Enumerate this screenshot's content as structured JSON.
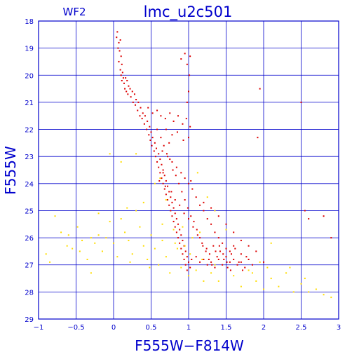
{
  "colors": {
    "axis": "#0000cc",
    "grid": "#0000cc",
    "text": "#0000cc",
    "point_primary": "#dd0000",
    "point_secondary": "#ffdd00"
  },
  "chart_data": {
    "type": "scatter",
    "panel_label": "WF2",
    "title": "lmc_u2c501",
    "xlabel": "F555W−F814W",
    "ylabel": "F555W",
    "xlim": [
      -1,
      3
    ],
    "ylim": [
      18,
      29
    ],
    "y_inverted": true,
    "grid": true,
    "legend": "none",
    "x_ticks": [
      -1,
      -0.5,
      0,
      0.5,
      1,
      1.5,
      2,
      2.5,
      3
    ],
    "x_tick_labels": [
      "−1",
      "−0.5",
      "0",
      "0.5",
      "1",
      "1.5",
      "2",
      "2.5",
      "3"
    ],
    "y_ticks": [
      18,
      19,
      20,
      21,
      22,
      23,
      24,
      25,
      26,
      27,
      28,
      29
    ],
    "y_tick_labels": [
      "18",
      "19",
      "20",
      "21",
      "22",
      "23",
      "24",
      "25",
      "26",
      "27",
      "28",
      "29"
    ],
    "series": [
      {
        "color": "#dd0000",
        "points": [
          [
            0.05,
            18.4
          ],
          [
            0.04,
            18.6
          ],
          [
            0.07,
            18.8
          ],
          [
            0.09,
            18.7
          ],
          [
            0.06,
            19.0
          ],
          [
            0.08,
            19.1
          ],
          [
            0.1,
            19.3
          ],
          [
            0.07,
            19.5
          ],
          [
            0.11,
            19.6
          ],
          [
            0.09,
            19.8
          ],
          [
            0.12,
            19.9
          ],
          [
            0.1,
            20.0
          ],
          [
            0.13,
            20.1
          ],
          [
            0.16,
            20.1
          ],
          [
            0.11,
            20.2
          ],
          [
            0.14,
            20.3
          ],
          [
            0.18,
            20.2
          ],
          [
            0.2,
            20.4
          ],
          [
            0.15,
            20.5
          ],
          [
            0.22,
            20.5
          ],
          [
            0.17,
            20.6
          ],
          [
            0.25,
            20.6
          ],
          [
            0.19,
            20.7
          ],
          [
            0.28,
            20.7
          ],
          [
            0.23,
            20.8
          ],
          [
            0.3,
            20.9
          ],
          [
            0.26,
            21.0
          ],
          [
            0.33,
            21.0
          ],
          [
            0.29,
            21.1
          ],
          [
            0.36,
            21.2
          ],
          [
            0.32,
            21.3
          ],
          [
            0.39,
            21.4
          ],
          [
            0.35,
            21.5
          ],
          [
            0.42,
            21.5
          ],
          [
            0.38,
            21.6
          ],
          [
            0.45,
            21.7
          ],
          [
            0.41,
            21.8
          ],
          [
            0.48,
            21.9
          ],
          [
            0.44,
            22.0
          ],
          [
            0.5,
            22.1
          ],
          [
            0.47,
            22.2
          ],
          [
            0.52,
            22.3
          ],
          [
            0.49,
            22.4
          ],
          [
            0.55,
            22.5
          ],
          [
            0.51,
            22.6
          ],
          [
            0.57,
            22.7
          ],
          [
            0.54,
            22.8
          ],
          [
            0.6,
            22.9
          ],
          [
            0.56,
            23.0
          ],
          [
            0.62,
            23.1
          ],
          [
            0.58,
            23.2
          ],
          [
            0.64,
            23.3
          ],
          [
            0.6,
            23.4
          ],
          [
            0.66,
            23.5
          ],
          [
            0.62,
            23.6
          ],
          [
            0.68,
            23.7
          ],
          [
            0.64,
            23.8
          ],
          [
            0.7,
            23.9
          ],
          [
            0.66,
            24.0
          ],
          [
            0.72,
            24.1
          ],
          [
            0.68,
            24.2
          ],
          [
            0.74,
            24.3
          ],
          [
            0.7,
            24.4
          ],
          [
            0.76,
            24.5
          ],
          [
            0.72,
            24.6
          ],
          [
            0.78,
            24.7
          ],
          [
            0.74,
            24.8
          ],
          [
            0.8,
            24.9
          ],
          [
            0.76,
            25.0
          ],
          [
            0.82,
            25.1
          ],
          [
            0.78,
            25.2
          ],
          [
            0.84,
            25.3
          ],
          [
            0.8,
            25.4
          ],
          [
            0.86,
            25.5
          ],
          [
            0.82,
            25.6
          ],
          [
            0.88,
            25.7
          ],
          [
            0.84,
            25.8
          ],
          [
            0.9,
            25.9
          ],
          [
            0.86,
            26.0
          ],
          [
            0.92,
            26.1
          ],
          [
            0.88,
            26.2
          ],
          [
            0.94,
            26.3
          ],
          [
            0.9,
            26.4
          ],
          [
            0.96,
            26.5
          ],
          [
            0.92,
            26.6
          ],
          [
            0.98,
            26.7
          ],
          [
            0.94,
            26.8
          ],
          [
            1.0,
            26.9
          ],
          [
            0.96,
            27.0
          ],
          [
            1.02,
            27.1
          ],
          [
            0.98,
            27.2
          ],
          [
            1.04,
            26.8
          ],
          [
            1.1,
            26.7
          ],
          [
            1.15,
            26.9
          ],
          [
            1.2,
            26.8
          ],
          [
            1.25,
            27.0
          ],
          [
            1.3,
            26.9
          ],
          [
            1.35,
            27.1
          ],
          [
            1.4,
            26.8
          ],
          [
            1.45,
            27.0
          ],
          [
            1.5,
            26.7
          ],
          [
            1.55,
            26.9
          ],
          [
            1.6,
            26.8
          ],
          [
            1.65,
            27.0
          ],
          [
            1.7,
            26.9
          ],
          [
            1.75,
            27.1
          ],
          [
            1.8,
            26.8
          ],
          [
            1.85,
            27.0
          ],
          [
            0.46,
            21.2
          ],
          [
            0.52,
            21.4
          ],
          [
            0.58,
            21.3
          ],
          [
            0.63,
            21.5
          ],
          [
            0.69,
            21.6
          ],
          [
            0.75,
            21.4
          ],
          [
            0.8,
            21.7
          ],
          [
            0.86,
            21.5
          ],
          [
            0.92,
            21.8
          ],
          [
            0.97,
            21.6
          ],
          [
            1.02,
            21.9
          ],
          [
            0.7,
            22.0
          ],
          [
            0.78,
            22.2
          ],
          [
            0.85,
            22.1
          ],
          [
            0.93,
            22.4
          ],
          [
            1.0,
            22.3
          ],
          [
            0.65,
            22.8
          ],
          [
            0.72,
            23.0
          ],
          [
            0.78,
            23.2
          ],
          [
            0.84,
            23.4
          ],
          [
            0.9,
            23.6
          ],
          [
            0.95,
            23.8
          ],
          [
            1.0,
            24.0
          ],
          [
            1.05,
            24.2
          ],
          [
            1.1,
            24.5
          ],
          [
            1.15,
            24.8
          ],
          [
            1.2,
            25.0
          ],
          [
            1.25,
            25.3
          ],
          [
            1.3,
            25.5
          ],
          [
            1.35,
            25.8
          ],
          [
            1.4,
            26.0
          ],
          [
            1.45,
            26.2
          ],
          [
            1.5,
            26.4
          ],
          [
            1.55,
            26.5
          ],
          [
            1.6,
            26.3
          ],
          [
            1.7,
            26.6
          ],
          [
            0.95,
            19.2
          ],
          [
            0.9,
            19.4
          ],
          [
            0.98,
            19.6
          ],
          [
            1.02,
            19.3
          ],
          [
            1.01,
            20.0
          ],
          [
            1.0,
            20.6
          ],
          [
            0.98,
            21.0
          ],
          [
            1.03,
            23.9
          ],
          [
            1.2,
            24.7
          ],
          [
            1.3,
            24.9
          ],
          [
            1.4,
            25.2
          ],
          [
            1.5,
            25.5
          ],
          [
            1.6,
            25.8
          ],
          [
            1.7,
            26.1
          ],
          [
            1.8,
            26.3
          ],
          [
            1.9,
            26.5
          ],
          [
            2.0,
            26.9
          ],
          [
            1.95,
            20.5
          ],
          [
            1.92,
            22.3
          ],
          [
            2.5,
            21.0
          ],
          [
            2.55,
            25.0
          ],
          [
            2.6,
            25.3
          ],
          [
            2.8,
            25.2
          ],
          [
            2.9,
            26.0
          ],
          [
            0.74,
            22.5
          ],
          [
            0.66,
            23.6
          ],
          [
            0.61,
            23.9
          ],
          [
            0.69,
            24.1
          ],
          [
            0.77,
            24.3
          ],
          [
            0.82,
            24.6
          ],
          [
            0.88,
            24.8
          ],
          [
            0.94,
            25.1
          ],
          [
            1.0,
            25.3
          ],
          [
            1.06,
            25.6
          ],
          [
            1.12,
            25.9
          ],
          [
            1.18,
            26.2
          ],
          [
            1.24,
            26.4
          ],
          [
            1.28,
            26.6
          ],
          [
            1.33,
            26.3
          ],
          [
            1.38,
            26.7
          ],
          [
            1.42,
            26.5
          ],
          [
            1.47,
            26.8
          ],
          [
            1.52,
            27.1
          ],
          [
            1.57,
            26.6
          ],
          [
            1.62,
            26.4
          ],
          [
            1.67,
            26.9
          ],
          [
            1.72,
            27.2
          ],
          [
            1.77,
            26.7
          ],
          [
            0.58,
            22.0
          ],
          [
            0.63,
            22.3
          ],
          [
            0.67,
            22.6
          ],
          [
            0.71,
            22.9
          ],
          [
            0.75,
            23.1
          ],
          [
            0.79,
            23.5
          ],
          [
            0.83,
            23.7
          ],
          [
            0.87,
            24.0
          ],
          [
            0.91,
            24.3
          ],
          [
            0.95,
            24.6
          ],
          [
            0.99,
            24.9
          ],
          [
            1.03,
            25.2
          ],
          [
            1.07,
            25.4
          ],
          [
            1.11,
            25.7
          ],
          [
            1.15,
            26.0
          ],
          [
            1.19,
            26.3
          ],
          [
            1.23,
            26.5
          ],
          [
            1.27,
            26.8
          ],
          [
            1.31,
            27.0
          ],
          [
            1.36,
            26.5
          ],
          [
            1.41,
            26.3
          ],
          [
            1.46,
            26.6
          ],
          [
            1.51,
            26.9
          ],
          [
            1.56,
            27.2
          ]
        ]
      },
      {
        "color": "#ffdd00",
        "points": [
          [
            -0.9,
            26.6
          ],
          [
            -0.85,
            26.9
          ],
          [
            -0.78,
            25.2
          ],
          [
            -0.7,
            25.8
          ],
          [
            -0.62,
            26.3
          ],
          [
            -0.55,
            26.4
          ],
          [
            -0.48,
            25.6
          ],
          [
            -0.42,
            26.1
          ],
          [
            -0.35,
            26.8
          ],
          [
            -0.3,
            27.3
          ],
          [
            -0.25,
            26.2
          ],
          [
            -0.2,
            25.9
          ],
          [
            -0.15,
            26.5
          ],
          [
            -0.1,
            26.0
          ],
          [
            -0.05,
            25.4
          ],
          [
            0.0,
            26.2
          ],
          [
            0.05,
            26.7
          ],
          [
            0.1,
            25.3
          ],
          [
            0.15,
            25.8
          ],
          [
            0.2,
            26.1
          ],
          [
            0.25,
            26.6
          ],
          [
            0.3,
            25.0
          ],
          [
            0.35,
            25.6
          ],
          [
            0.4,
            26.3
          ],
          [
            0.45,
            26.8
          ],
          [
            0.5,
            25.9
          ],
          [
            0.55,
            26.4
          ],
          [
            0.6,
            27.0
          ],
          [
            0.65,
            26.1
          ],
          [
            0.7,
            26.7
          ],
          [
            0.75,
            27.3
          ],
          [
            0.8,
            25.7
          ],
          [
            0.85,
            26.4
          ],
          [
            0.9,
            27.1
          ],
          [
            0.95,
            26.3
          ],
          [
            1.0,
            27.4
          ],
          [
            1.05,
            26.0
          ],
          [
            1.1,
            27.2
          ],
          [
            1.15,
            25.8
          ],
          [
            1.2,
            27.6
          ],
          [
            1.3,
            27.3
          ],
          [
            1.4,
            27.6
          ],
          [
            1.5,
            25.7
          ],
          [
            1.6,
            27.4
          ],
          [
            1.7,
            27.8
          ],
          [
            1.8,
            27.2
          ],
          [
            1.9,
            27.6
          ],
          [
            2.0,
            27.9
          ],
          [
            2.1,
            27.5
          ],
          [
            2.2,
            27.8
          ],
          [
            2.3,
            27.3
          ],
          [
            2.4,
            28.0
          ],
          [
            2.5,
            27.7
          ],
          [
            2.6,
            28.0
          ],
          [
            2.7,
            27.9
          ],
          [
            2.8,
            28.1
          ],
          [
            2.9,
            28.2
          ],
          [
            -0.05,
            22.9
          ],
          [
            0.1,
            23.2
          ],
          [
            0.3,
            22.9
          ],
          [
            0.4,
            24.7
          ],
          [
            0.55,
            24.0
          ],
          [
            0.62,
            23.8
          ],
          [
            0.7,
            24.6
          ],
          [
            1.12,
            23.6
          ],
          [
            1.25,
            24.5
          ],
          [
            1.35,
            25.0
          ],
          [
            0.18,
            24.9
          ],
          [
            -0.2,
            25.1
          ],
          [
            -0.45,
            26.5
          ],
          [
            -0.6,
            25.9
          ],
          [
            -0.3,
            26.0
          ],
          [
            0.22,
            26.9
          ],
          [
            0.48,
            27.1
          ],
          [
            0.65,
            25.5
          ],
          [
            0.82,
            26.2
          ],
          [
            0.92,
            25.6
          ],
          [
            1.02,
            26.6
          ],
          [
            1.18,
            26.8
          ],
          [
            1.35,
            27.0
          ],
          [
            2.1,
            26.2
          ],
          [
            2.35,
            27.1
          ],
          [
            2.55,
            27.5
          ],
          [
            2.05,
            27.1
          ],
          [
            1.95,
            26.9
          ],
          [
            1.85,
            27.3
          ]
        ]
      }
    ]
  }
}
